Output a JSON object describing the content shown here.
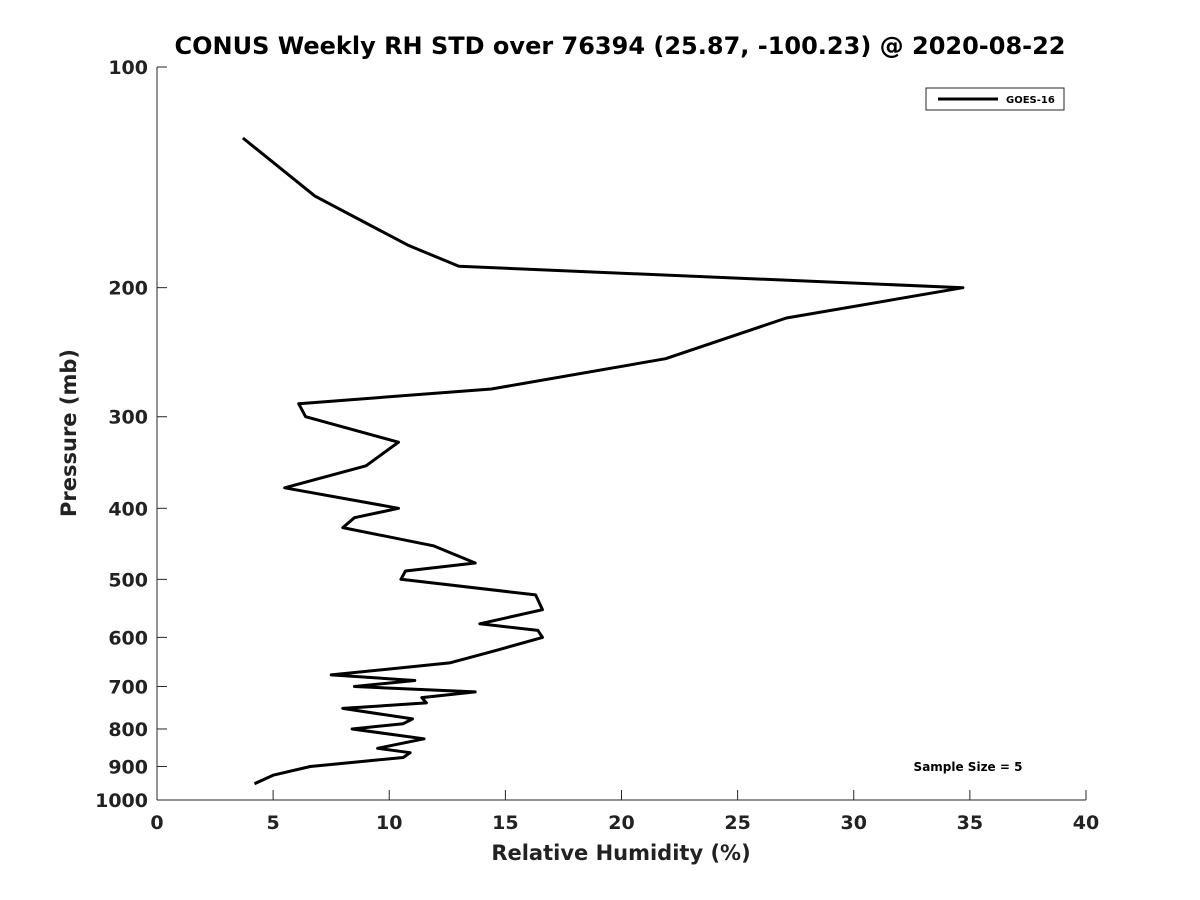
{
  "chart_data": {
    "type": "line",
    "title": "CONUS Weekly RH STD over 76394 (25.87, -100.23) @ 2020-08-22",
    "xlabel": "Relative Humidity (%)",
    "ylabel": "Pressure (mb)",
    "xlim": [
      0,
      40
    ],
    "ylim": [
      100,
      1000
    ],
    "y_scale": "log",
    "y_reversed": true,
    "x_ticks": [
      0,
      5,
      10,
      15,
      20,
      25,
      30,
      35,
      40
    ],
    "y_ticks": [
      100,
      200,
      300,
      400,
      500,
      600,
      700,
      800,
      900,
      1000
    ],
    "grid": false,
    "legend": {
      "location": "top-right",
      "entries": [
        "GOES-16"
      ]
    },
    "annotation": "Sample Size = 5",
    "series": [
      {
        "name": "GOES-16",
        "color": "#000000",
        "points": [
          [
            3.7,
            125
          ],
          [
            6.8,
            150
          ],
          [
            10.8,
            175
          ],
          [
            13.0,
            187
          ],
          [
            34.7,
            200
          ],
          [
            27.1,
            220
          ],
          [
            21.9,
            250
          ],
          [
            14.4,
            275
          ],
          [
            6.1,
            288
          ],
          [
            6.4,
            300
          ],
          [
            10.4,
            325
          ],
          [
            9.0,
            350
          ],
          [
            5.5,
            375
          ],
          [
            10.4,
            400
          ],
          [
            8.5,
            412
          ],
          [
            8.0,
            425
          ],
          [
            11.9,
            450
          ],
          [
            13.7,
            475
          ],
          [
            10.7,
            487
          ],
          [
            10.5,
            500
          ],
          [
            16.3,
            525
          ],
          [
            16.6,
            550
          ],
          [
            13.9,
            575
          ],
          [
            16.4,
            587
          ],
          [
            16.6,
            600
          ],
          [
            14.6,
            625
          ],
          [
            12.6,
            650
          ],
          [
            7.5,
            675
          ],
          [
            11.1,
            687
          ],
          [
            8.5,
            700
          ],
          [
            13.7,
            712
          ],
          [
            11.4,
            725
          ],
          [
            11.6,
            737
          ],
          [
            8.0,
            750
          ],
          [
            11.0,
            775
          ],
          [
            10.6,
            787
          ],
          [
            8.4,
            800
          ],
          [
            11.5,
            825
          ],
          [
            9.5,
            850
          ],
          [
            10.9,
            862
          ],
          [
            10.6,
            875
          ],
          [
            6.6,
            900
          ],
          [
            5.0,
            925
          ],
          [
            4.2,
            950
          ]
        ]
      }
    ]
  }
}
